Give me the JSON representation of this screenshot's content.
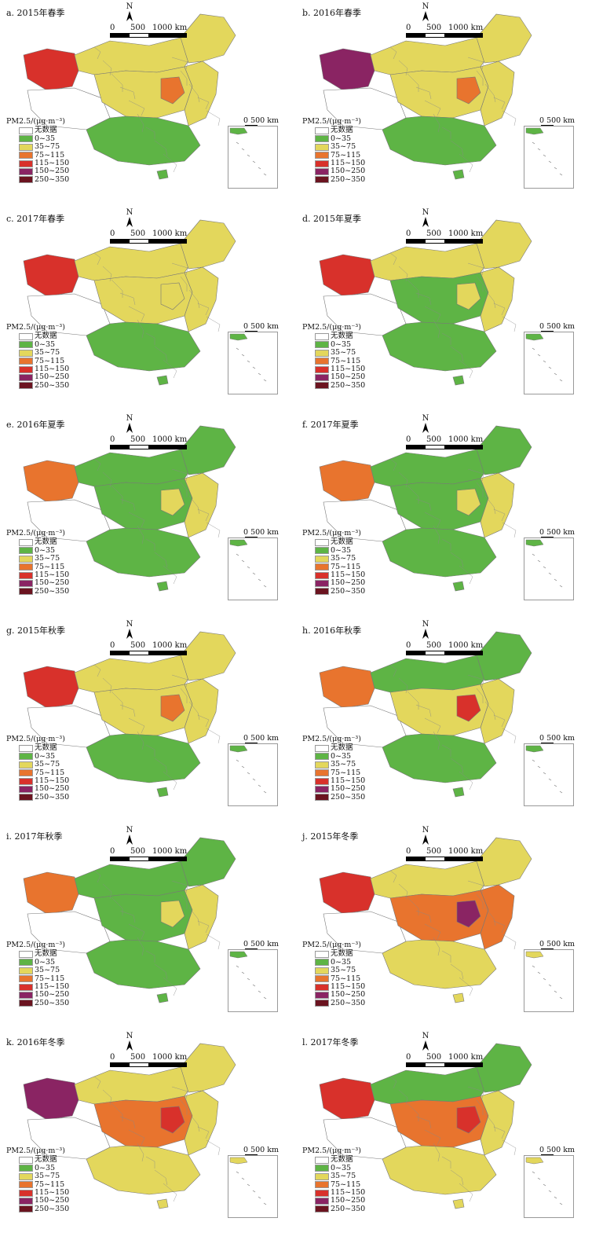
{
  "colors": {
    "无数据": "#ffffff",
    "0~35": "#5eb445",
    "35~75": "#e3d75c",
    "75~115": "#e8742e",
    "115~150": "#d8312b",
    "150~250": "#8a2463",
    "250~350": "#6b1420"
  },
  "legend": {
    "title": "PM2.5/(μg·m⁻³)",
    "items": [
      "无数据",
      "0~35",
      "35~75",
      "75~115",
      "115~150",
      "150~250",
      "250~350"
    ]
  },
  "scale": {
    "labels": [
      "0",
      "500",
      "1000 km"
    ],
    "inset_label": "0 500 km"
  },
  "north_label": "N",
  "panels": [
    {
      "title": "a. 2015年春季",
      "pattern": {
        "west": "115~150",
        "north": "35~75",
        "east": "35~75",
        "south": "0~35",
        "center": "35~75",
        "hotspot": "75~115"
      }
    },
    {
      "title": "b. 2016年春季",
      "pattern": {
        "west": "150~250",
        "north": "35~75",
        "east": "35~75",
        "south": "0~35",
        "center": "35~75",
        "hotspot": "75~115"
      }
    },
    {
      "title": "c. 2017年春季",
      "pattern": {
        "west": "115~150",
        "north": "35~75",
        "east": "35~75",
        "south": "0~35",
        "center": "35~75",
        "hotspot": "35~75"
      }
    },
    {
      "title": "d. 2015年夏季",
      "pattern": {
        "west": "115~150",
        "north": "35~75",
        "east": "35~75",
        "south": "0~35",
        "center": "0~35",
        "hotspot": "35~75"
      }
    },
    {
      "title": "e. 2016年夏季",
      "pattern": {
        "west": "75~115",
        "north": "0~35",
        "east": "35~75",
        "south": "0~35",
        "center": "0~35",
        "hotspot": "35~75"
      }
    },
    {
      "title": "f. 2017年夏季",
      "pattern": {
        "west": "75~115",
        "north": "0~35",
        "east": "35~75",
        "south": "0~35",
        "center": "0~35",
        "hotspot": "35~75"
      }
    },
    {
      "title": "g. 2015年秋季",
      "pattern": {
        "west": "115~150",
        "north": "35~75",
        "east": "35~75",
        "south": "0~35",
        "center": "35~75",
        "hotspot": "75~115"
      }
    },
    {
      "title": "h. 2016年秋季",
      "pattern": {
        "west": "75~115",
        "north": "0~35",
        "east": "35~75",
        "south": "0~35",
        "center": "35~75",
        "hotspot": "115~150"
      }
    },
    {
      "title": "i. 2017年秋季",
      "pattern": {
        "west": "75~115",
        "north": "0~35",
        "east": "35~75",
        "south": "0~35",
        "center": "0~35",
        "hotspot": "35~75"
      }
    },
    {
      "title": "j. 2015年冬季",
      "pattern": {
        "west": "115~150",
        "north": "35~75",
        "east": "75~115",
        "south": "35~75",
        "center": "75~115",
        "hotspot": "150~250"
      }
    },
    {
      "title": "k. 2016年冬季",
      "pattern": {
        "west": "150~250",
        "north": "35~75",
        "east": "35~75",
        "south": "35~75",
        "center": "75~115",
        "hotspot": "115~150"
      }
    },
    {
      "title": "l. 2017年冬季",
      "pattern": {
        "west": "115~150",
        "north": "0~35",
        "east": "35~75",
        "south": "35~75",
        "center": "75~115",
        "hotspot": "115~150"
      }
    }
  ]
}
